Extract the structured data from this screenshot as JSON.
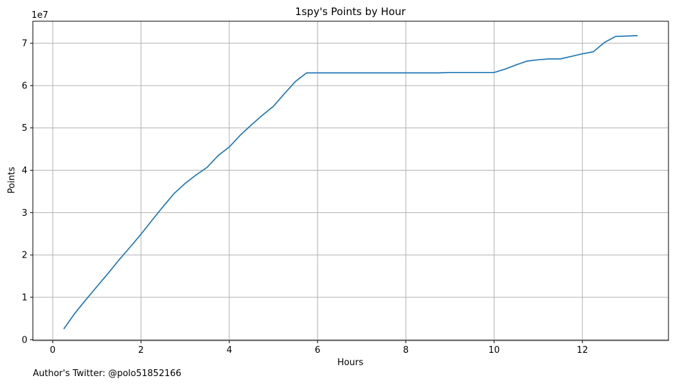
{
  "footer": {
    "text": "Author's Twitter: @polo51852166"
  },
  "chart_data": {
    "type": "line",
    "title": "1spy's Points by Hour",
    "xlabel": "Hours",
    "ylabel": "Points",
    "y_offset_label": "1e7",
    "xlim": [
      -0.45,
      13.95
    ],
    "ylim": [
      -0.02,
      7.52
    ],
    "x_ticks": [
      0,
      2,
      4,
      6,
      8,
      10,
      12
    ],
    "y_ticks": [
      0,
      1,
      2,
      3,
      4,
      5,
      6,
      7
    ],
    "grid": true,
    "line_color": "#1f77b4",
    "grid_color": "#b0b0b0",
    "series": [
      {
        "x": [
          0.25,
          0.5,
          0.75,
          1.0,
          1.25,
          1.5,
          1.75,
          2.0,
          2.25,
          2.5,
          2.75,
          3.0,
          3.25,
          3.5,
          3.75,
          4.0,
          4.25,
          4.5,
          4.75,
          5.0,
          5.25,
          5.5,
          5.75,
          6.0,
          6.25,
          6.5,
          6.75,
          7.0,
          7.25,
          7.5,
          7.75,
          8.0,
          8.25,
          8.5,
          8.75,
          9.0,
          9.25,
          9.5,
          9.75,
          10.0,
          10.25,
          10.5,
          10.75,
          11.0,
          11.25,
          11.5,
          11.75,
          12.0,
          12.25,
          12.5,
          12.75,
          13.0,
          13.25
        ],
        "y": [
          0.25,
          0.62,
          0.94,
          1.25,
          1.56,
          1.88,
          2.18,
          2.49,
          2.82,
          3.14,
          3.45,
          3.69,
          3.89,
          4.07,
          4.35,
          4.55,
          4.83,
          5.07,
          5.3,
          5.51,
          5.81,
          6.1,
          6.3,
          6.3,
          6.3,
          6.3,
          6.3,
          6.3,
          6.3,
          6.3,
          6.3,
          6.3,
          6.3,
          6.3,
          6.3,
          6.31,
          6.31,
          6.31,
          6.31,
          6.31,
          6.39,
          6.49,
          6.58,
          6.61,
          6.63,
          6.63,
          6.69,
          6.75,
          6.8,
          7.02,
          7.16,
          7.17,
          7.18
        ]
      }
    ]
  }
}
